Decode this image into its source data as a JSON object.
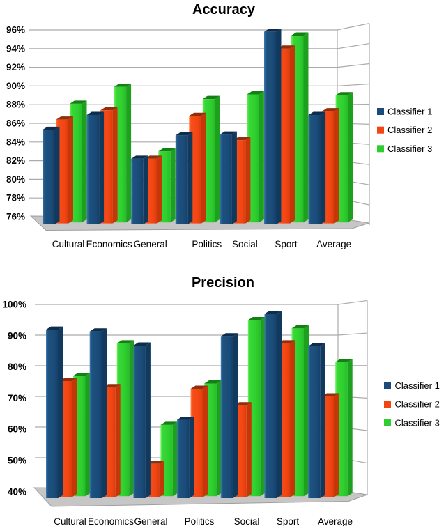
{
  "chart_data": [
    {
      "type": "bar",
      "title": "Accuracy",
      "categories": [
        "Cultural",
        "Economics",
        "General",
        "Politics",
        "Social",
        "Sport",
        "Average"
      ],
      "series": [
        {
          "name": "Classifier 1",
          "color": "#1A4B79",
          "values": [
            85.3,
            86.9,
            82.2,
            84.7,
            84.8,
            95.8,
            86.9
          ]
        },
        {
          "name": "Classifier 2",
          "color": "#F24513",
          "values": [
            86.4,
            87.4,
            82.2,
            86.8,
            84.2,
            94.0,
            87.3
          ]
        },
        {
          "name": "Classifier 3",
          "color": "#2DCE2D",
          "values": [
            88.1,
            89.9,
            83.0,
            88.6,
            89.1,
            95.4,
            89.0
          ]
        }
      ],
      "ylim": [
        76,
        96
      ],
      "y_tick_step": 2,
      "y_tick_labels": [
        "96%",
        "94%",
        "92%",
        "90%",
        "88%",
        "86%",
        "84%",
        "82%",
        "80%",
        "78%",
        "76%"
      ],
      "legend_position": "right",
      "grid": true
    },
    {
      "type": "bar",
      "title": "Precision",
      "categories": [
        "Cultural",
        "Economics",
        "General",
        "Politics",
        "Social",
        "Sport",
        "Average"
      ],
      "series": [
        {
          "name": "Classifier 1",
          "color": "#1A4B79",
          "values": [
            91.8,
            91.2,
            86.6,
            62.4,
            89.6,
            96.9,
            86.4
          ]
        },
        {
          "name": "Classifier 2",
          "color": "#F24513",
          "values": [
            75.0,
            73.0,
            48.0,
            72.5,
            67.1,
            87.3,
            70.0
          ]
        },
        {
          "name": "Classifier 3",
          "color": "#2DCE2D",
          "values": [
            76.7,
            87.3,
            60.7,
            74.2,
            94.9,
            92.2,
            81.2
          ]
        }
      ],
      "ylim": [
        40,
        100
      ],
      "y_tick_step": 10,
      "y_tick_labels": [
        "100%",
        "90%",
        "80%",
        "70%",
        "60%",
        "50%",
        "40%"
      ],
      "legend_position": "right",
      "grid": true
    }
  ],
  "colors": {
    "grid_line": "#ABABAB",
    "floor_fill": "#C6C6C6",
    "floor_edge": "#9E9E9E",
    "text": "#000000"
  }
}
